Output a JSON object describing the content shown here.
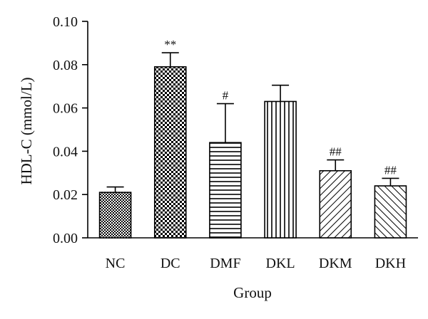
{
  "chart_data": {
    "type": "bar",
    "xlabel": "Group",
    "ylabel": "HDL-C (mmol/L)",
    "ylim": [
      0,
      0.1
    ],
    "yticks": [
      "0.00",
      "0.02",
      "0.04",
      "0.06",
      "0.08",
      "0.10"
    ],
    "categories": [
      "NC",
      "DC",
      "DMF",
      "DKL",
      "DKM",
      "DKH"
    ],
    "values": [
      0.021,
      0.079,
      0.044,
      0.063,
      0.031,
      0.024
    ],
    "errors": [
      0.0025,
      0.0065,
      0.018,
      0.0075,
      0.005,
      0.0035
    ],
    "annotations": [
      "",
      "**",
      "#",
      "",
      "##",
      "##"
    ],
    "patterns": [
      "fine-check",
      "checkerboard",
      "horizontal-lines",
      "vertical-lines",
      "diagonal-lines",
      "diagonal-lines-reverse"
    ],
    "grid": false,
    "legend": "none",
    "colors": {
      "bar_stroke": "#000000",
      "pattern": "#000000",
      "background": "#ffffff"
    }
  }
}
